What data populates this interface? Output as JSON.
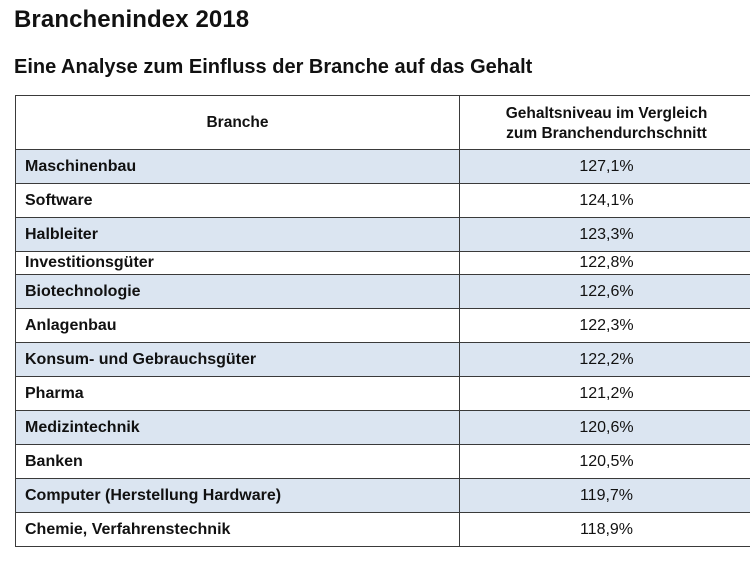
{
  "title": "Branchenindex 2018",
  "subtitle": "Eine Analyse zum Einfluss der Branche auf das Gehalt",
  "table": {
    "header": {
      "col1": "Branche",
      "col2_line1": "Gehaltsniveau im Vergleich",
      "col2_line2": "zum Branchendurchschnitt"
    },
    "rows": [
      {
        "branche": "Maschinenbau",
        "wert": "127,1%"
      },
      {
        "branche": "Software",
        "wert": "124,1%"
      },
      {
        "branche": "Halbleiter",
        "wert": "123,3%"
      },
      {
        "branche": "Investitionsgüter",
        "wert": "122,8%"
      },
      {
        "branche": "Biotechnologie",
        "wert": "122,6%"
      },
      {
        "branche": "Anlagenbau",
        "wert": "122,3%"
      },
      {
        "branche": "Konsum- und Gebrauchsgüter",
        "wert": "122,2%"
      },
      {
        "branche": "Pharma",
        "wert": "121,2%"
      },
      {
        "branche": "Medizintechnik",
        "wert": "120,6%"
      },
      {
        "branche": "Banken",
        "wert": "120,5%"
      },
      {
        "branche": "Computer (Herstellung Hardware)",
        "wert": "119,7%"
      },
      {
        "branche": "Chemie, Verfahrenstechnik",
        "wert": "118,9%"
      }
    ]
  },
  "colors": {
    "row_highlight": "#dbe5f1",
    "border": "#3a3a3a"
  }
}
